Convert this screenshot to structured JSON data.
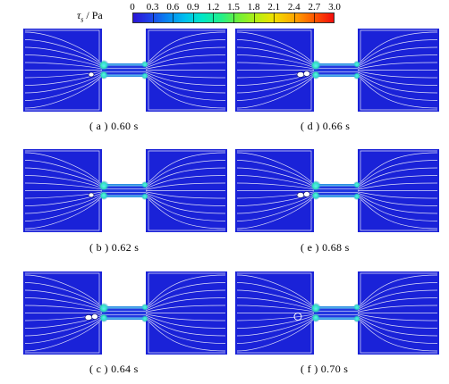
{
  "colorbar": {
    "label_symbol": "τ",
    "label_sub": "s",
    "label_unit": " / Pa",
    "ticks": [
      "0",
      "0.3",
      "0.6",
      "0.9",
      "1.2",
      "1.5",
      "1.8",
      "2.1",
      "2.4",
      "2.7",
      "3.0"
    ],
    "range": [
      0,
      3.0
    ]
  },
  "panels": [
    {
      "id": "a",
      "caption": "( a )  0.60 s",
      "vortex": "small"
    },
    {
      "id": "b",
      "caption": "( b )  0.62 s",
      "vortex": "small"
    },
    {
      "id": "c",
      "caption": "( c )  0.64 s",
      "vortex": "pair"
    },
    {
      "id": "d",
      "caption": "( d )  0.66 s",
      "vortex": "pair"
    },
    {
      "id": "e",
      "caption": "( e )  0.68 s",
      "vortex": "pair"
    },
    {
      "id": "f",
      "caption": "( f )  0.70 s",
      "vortex": "single"
    }
  ],
  "colors": {
    "field": "#1a22d8",
    "streamline": "#ffffff",
    "hotspot": "#25e0b0"
  }
}
